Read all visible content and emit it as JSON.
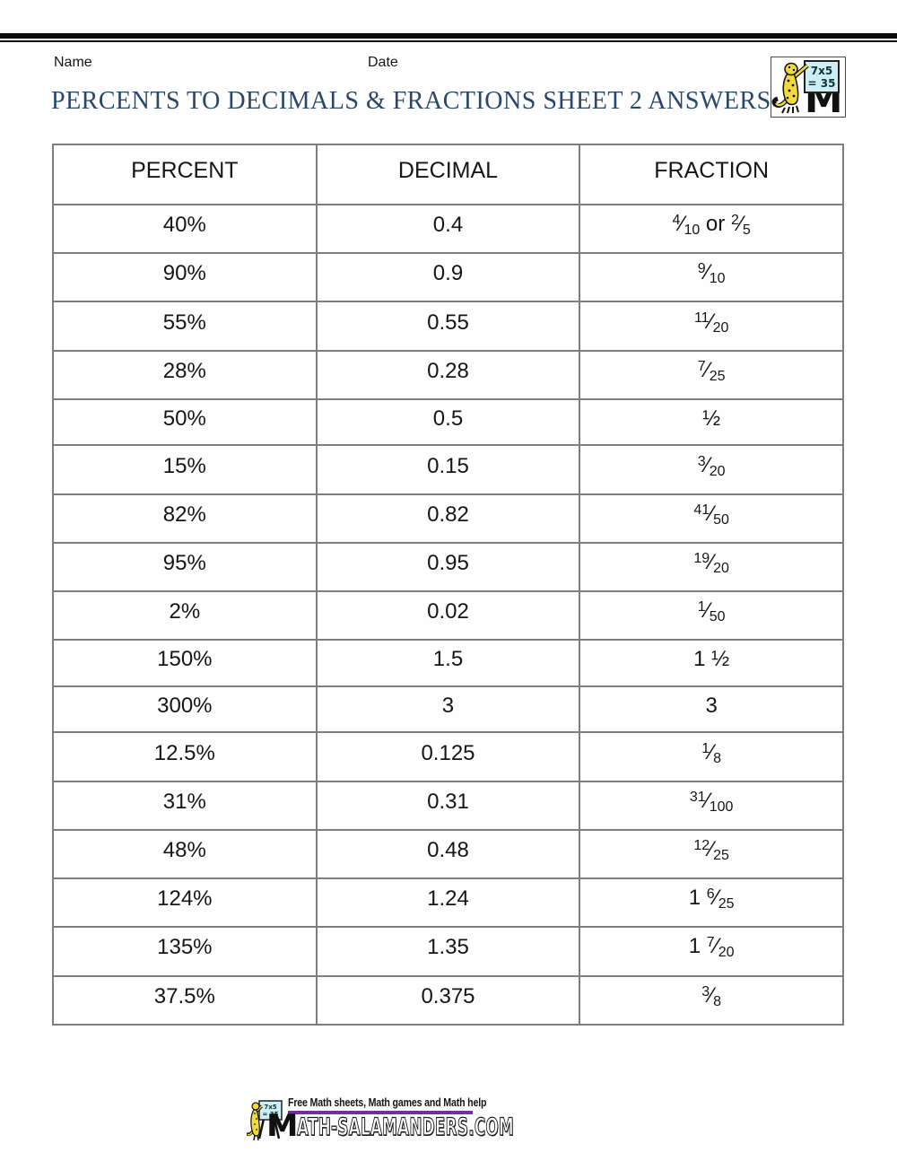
{
  "header": {
    "name_label": "Name",
    "date_label": "Date",
    "title": "PERCENTS TO DECIMALS & FRACTIONS SHEET 2 ANSWERS"
  },
  "logo": {
    "board_line1": "7x5",
    "board_line2": "= 35",
    "m_letter": "M"
  },
  "table": {
    "headers": [
      "PERCENT",
      "DECIMAL",
      "FRACTION"
    ],
    "rows": [
      {
        "percent": "40%",
        "decimal": "0.4",
        "fraction": [
          {
            "n": "4",
            "d": "10"
          },
          {
            "v": " or "
          },
          {
            "n": "2",
            "d": "5"
          }
        ],
        "answer": false
      },
      {
        "percent": "90%",
        "decimal": "0.9",
        "fraction": [
          {
            "n": "9",
            "d": "10"
          }
        ],
        "answer": true
      },
      {
        "percent": "55%",
        "decimal": "0.55",
        "fraction": [
          {
            "n": "11",
            "d": "20"
          }
        ],
        "answer": true
      },
      {
        "percent": "28%",
        "decimal": "0.28",
        "fraction": [
          {
            "n": "7",
            "d": "25"
          }
        ],
        "answer": true
      },
      {
        "percent": "50%",
        "decimal": "0.5",
        "fraction": [
          {
            "v": "½"
          }
        ],
        "answer": true
      },
      {
        "percent": "15%",
        "decimal": "0.15",
        "fraction": [
          {
            "n": "3",
            "d": "20"
          }
        ],
        "answer": true
      },
      {
        "percent": "82%",
        "decimal": "0.82",
        "fraction": [
          {
            "n": "41",
            "d": "50"
          }
        ],
        "answer": true
      },
      {
        "percent": "95%",
        "decimal": "0.95",
        "fraction": [
          {
            "n": "19",
            "d": "20"
          }
        ],
        "answer": true
      },
      {
        "percent": "2%",
        "decimal": "0.02",
        "fraction": [
          {
            "n": "1",
            "d": "50"
          }
        ],
        "answer": true
      },
      {
        "percent": "150%",
        "decimal": "1.5",
        "fraction": [
          {
            "v": "1 ½"
          }
        ],
        "answer": true
      },
      {
        "percent": "300%",
        "decimal": "3",
        "fraction": [
          {
            "v": "3"
          }
        ],
        "answer": true
      },
      {
        "percent": "12.5%",
        "decimal": "0.125",
        "fraction": [
          {
            "n": "1",
            "d": "8"
          }
        ],
        "answer": true
      },
      {
        "percent": "31%",
        "decimal": "0.31",
        "fraction": [
          {
            "n": "31",
            "d": "100"
          }
        ],
        "answer": true
      },
      {
        "percent": "48%",
        "decimal": "0.48",
        "fraction": [
          {
            "n": "12",
            "d": "25"
          }
        ],
        "answer": true
      },
      {
        "percent": "124%",
        "decimal": "1.24",
        "fraction": [
          {
            "v": "1 "
          },
          {
            "n": "6",
            "d": "25"
          }
        ],
        "answer": true
      },
      {
        "percent": "135%",
        "decimal": "1.35",
        "fraction": [
          {
            "v": "1 "
          },
          {
            "n": "7",
            "d": "20"
          }
        ],
        "answer": true
      },
      {
        "percent": "37.5%",
        "decimal": "0.375",
        "fraction": [
          {
            "n": "3",
            "d": "8"
          }
        ],
        "answer": true
      }
    ]
  },
  "footer": {
    "tagline": "Free Math sheets, Math games and Math help",
    "site_m": "M",
    "site_rest": "ATH-SALAMANDERS.COM",
    "board_line1": "7x5",
    "board_line2": "= 35"
  },
  "colors": {
    "title_blue": "#29466b",
    "answer_red": "#fb0303",
    "underline_purple": "#7030a0",
    "board_cyan": "#cdeef5",
    "salamander_yellow": "#f2da3c"
  }
}
